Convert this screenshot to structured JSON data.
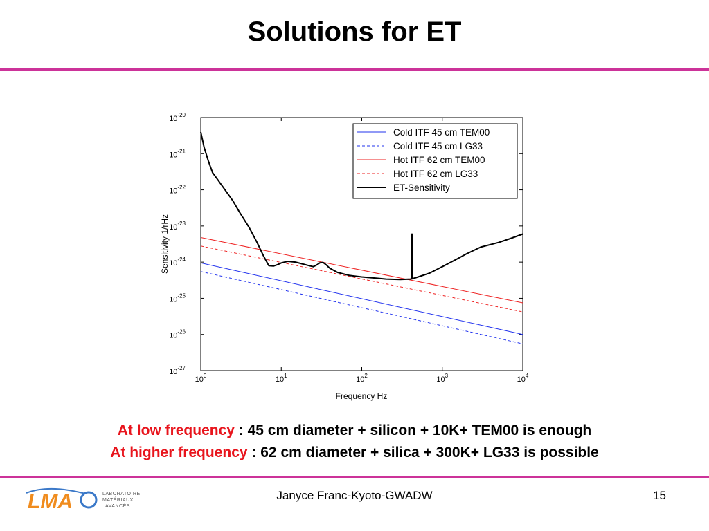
{
  "slide": {
    "title": "Solutions for ET",
    "caption_line1": {
      "highlight": "At low frequency",
      "rest": " : 45 cm diameter + silicon + 10K+ TEM00 is enough"
    },
    "caption_line2": {
      "highlight": "At higher frequency",
      "rest": " : 62 cm diameter + silica + 300K+ LG33 is possible"
    },
    "footer": "Janyce Franc-Kyoto-GWADW",
    "page_number": "15",
    "logo": {
      "letters": "LMA",
      "line1": "LABORATOIRE",
      "line2": "MATÉRIAUX",
      "line3": "AVANCÉS"
    },
    "accent_color": "#cc3399",
    "highlight_color": "#e8141c"
  },
  "chart_data": {
    "type": "line",
    "xlabel": "Frequency Hz",
    "ylabel": "Sensitivity 1/rHz",
    "x_scale": "log",
    "y_scale": "log",
    "xlim": [
      1,
      10000
    ],
    "ylim": [
      1e-27,
      1e-20
    ],
    "x_ticks": [
      {
        "value": 1,
        "base": "10",
        "exp": "0"
      },
      {
        "value": 10,
        "base": "10",
        "exp": "1"
      },
      {
        "value": 100,
        "base": "10",
        "exp": "2"
      },
      {
        "value": 1000,
        "base": "10",
        "exp": "3"
      },
      {
        "value": 10000,
        "base": "10",
        "exp": "4"
      }
    ],
    "y_ticks": [
      {
        "value": 1e-20,
        "base": "10",
        "exp": "-20"
      },
      {
        "value": 1e-21,
        "base": "10",
        "exp": "-21"
      },
      {
        "value": 1e-22,
        "base": "10",
        "exp": "-22"
      },
      {
        "value": 1e-23,
        "base": "10",
        "exp": "-23"
      },
      {
        "value": 1e-24,
        "base": "10",
        "exp": "-24"
      },
      {
        "value": 1e-25,
        "base": "10",
        "exp": "-25"
      },
      {
        "value": 1e-26,
        "base": "10",
        "exp": "-26"
      },
      {
        "value": 1e-27,
        "base": "10",
        "exp": "-27"
      }
    ],
    "grid": false,
    "legend_position": "top-right",
    "series": [
      {
        "name": "Cold ITF 45 cm TEM00",
        "color": "#2233ee",
        "dash": "solid",
        "width": 1,
        "x": [
          1,
          10000
        ],
        "y": [
          9.5e-25,
          1e-26
        ]
      },
      {
        "name": "Cold ITF 45 cm LG33",
        "color": "#2233ee",
        "dash": "dashed",
        "width": 1,
        "x": [
          1,
          10000
        ],
        "y": [
          5.5e-25,
          5.5e-27
        ]
      },
      {
        "name": "Hot ITF 62 cm TEM00",
        "color": "#ee2222",
        "dash": "solid",
        "width": 1,
        "x": [
          1,
          10000
        ],
        "y": [
          4.8e-24,
          7.5e-26
        ]
      },
      {
        "name": "Hot ITF 62 cm LG33",
        "color": "#ee2222",
        "dash": "dashed",
        "width": 1,
        "x": [
          1,
          10000
        ],
        "y": [
          2.8e-24,
          4.2e-26
        ]
      },
      {
        "name": "ET-Sensitivity",
        "color": "#000000",
        "dash": "solid",
        "width": 2,
        "x": [
          1,
          1.1,
          1.25,
          1.4,
          1.6,
          2,
          2.5,
          3,
          4,
          5,
          6,
          7,
          8,
          9,
          10,
          12,
          15,
          18,
          22,
          25,
          28,
          30,
          33,
          36,
          40,
          50,
          70,
          100,
          150,
          200,
          300,
          400,
          420,
          420,
          420,
          430,
          500,
          700,
          1000,
          1500,
          2000,
          3000,
          5000,
          7000,
          10000
        ],
        "y": [
          4e-21,
          1.5e-21,
          6e-22,
          3e-22,
          2e-22,
          1e-22,
          5e-23,
          2.5e-23,
          9e-24,
          3.5e-24,
          1.5e-24,
          8e-25,
          7.8e-25,
          8.5e-25,
          9.5e-25,
          1.05e-24,
          1e-24,
          9e-25,
          8e-25,
          7.5e-25,
          8.5e-25,
          9.5e-25,
          9.8e-25,
          8.5e-25,
          6.8e-25,
          5.2e-25,
          4.3e-25,
          3.9e-25,
          3.6e-25,
          3.4e-25,
          3.3e-25,
          3.4e-25,
          3.45e-25,
          6e-24,
          3.45e-25,
          3.5e-25,
          3.9e-25,
          5e-25,
          7.5e-25,
          1.2e-24,
          1.7e-24,
          2.6e-24,
          3.5e-24,
          4.5e-24,
          6e-24
        ]
      }
    ]
  }
}
